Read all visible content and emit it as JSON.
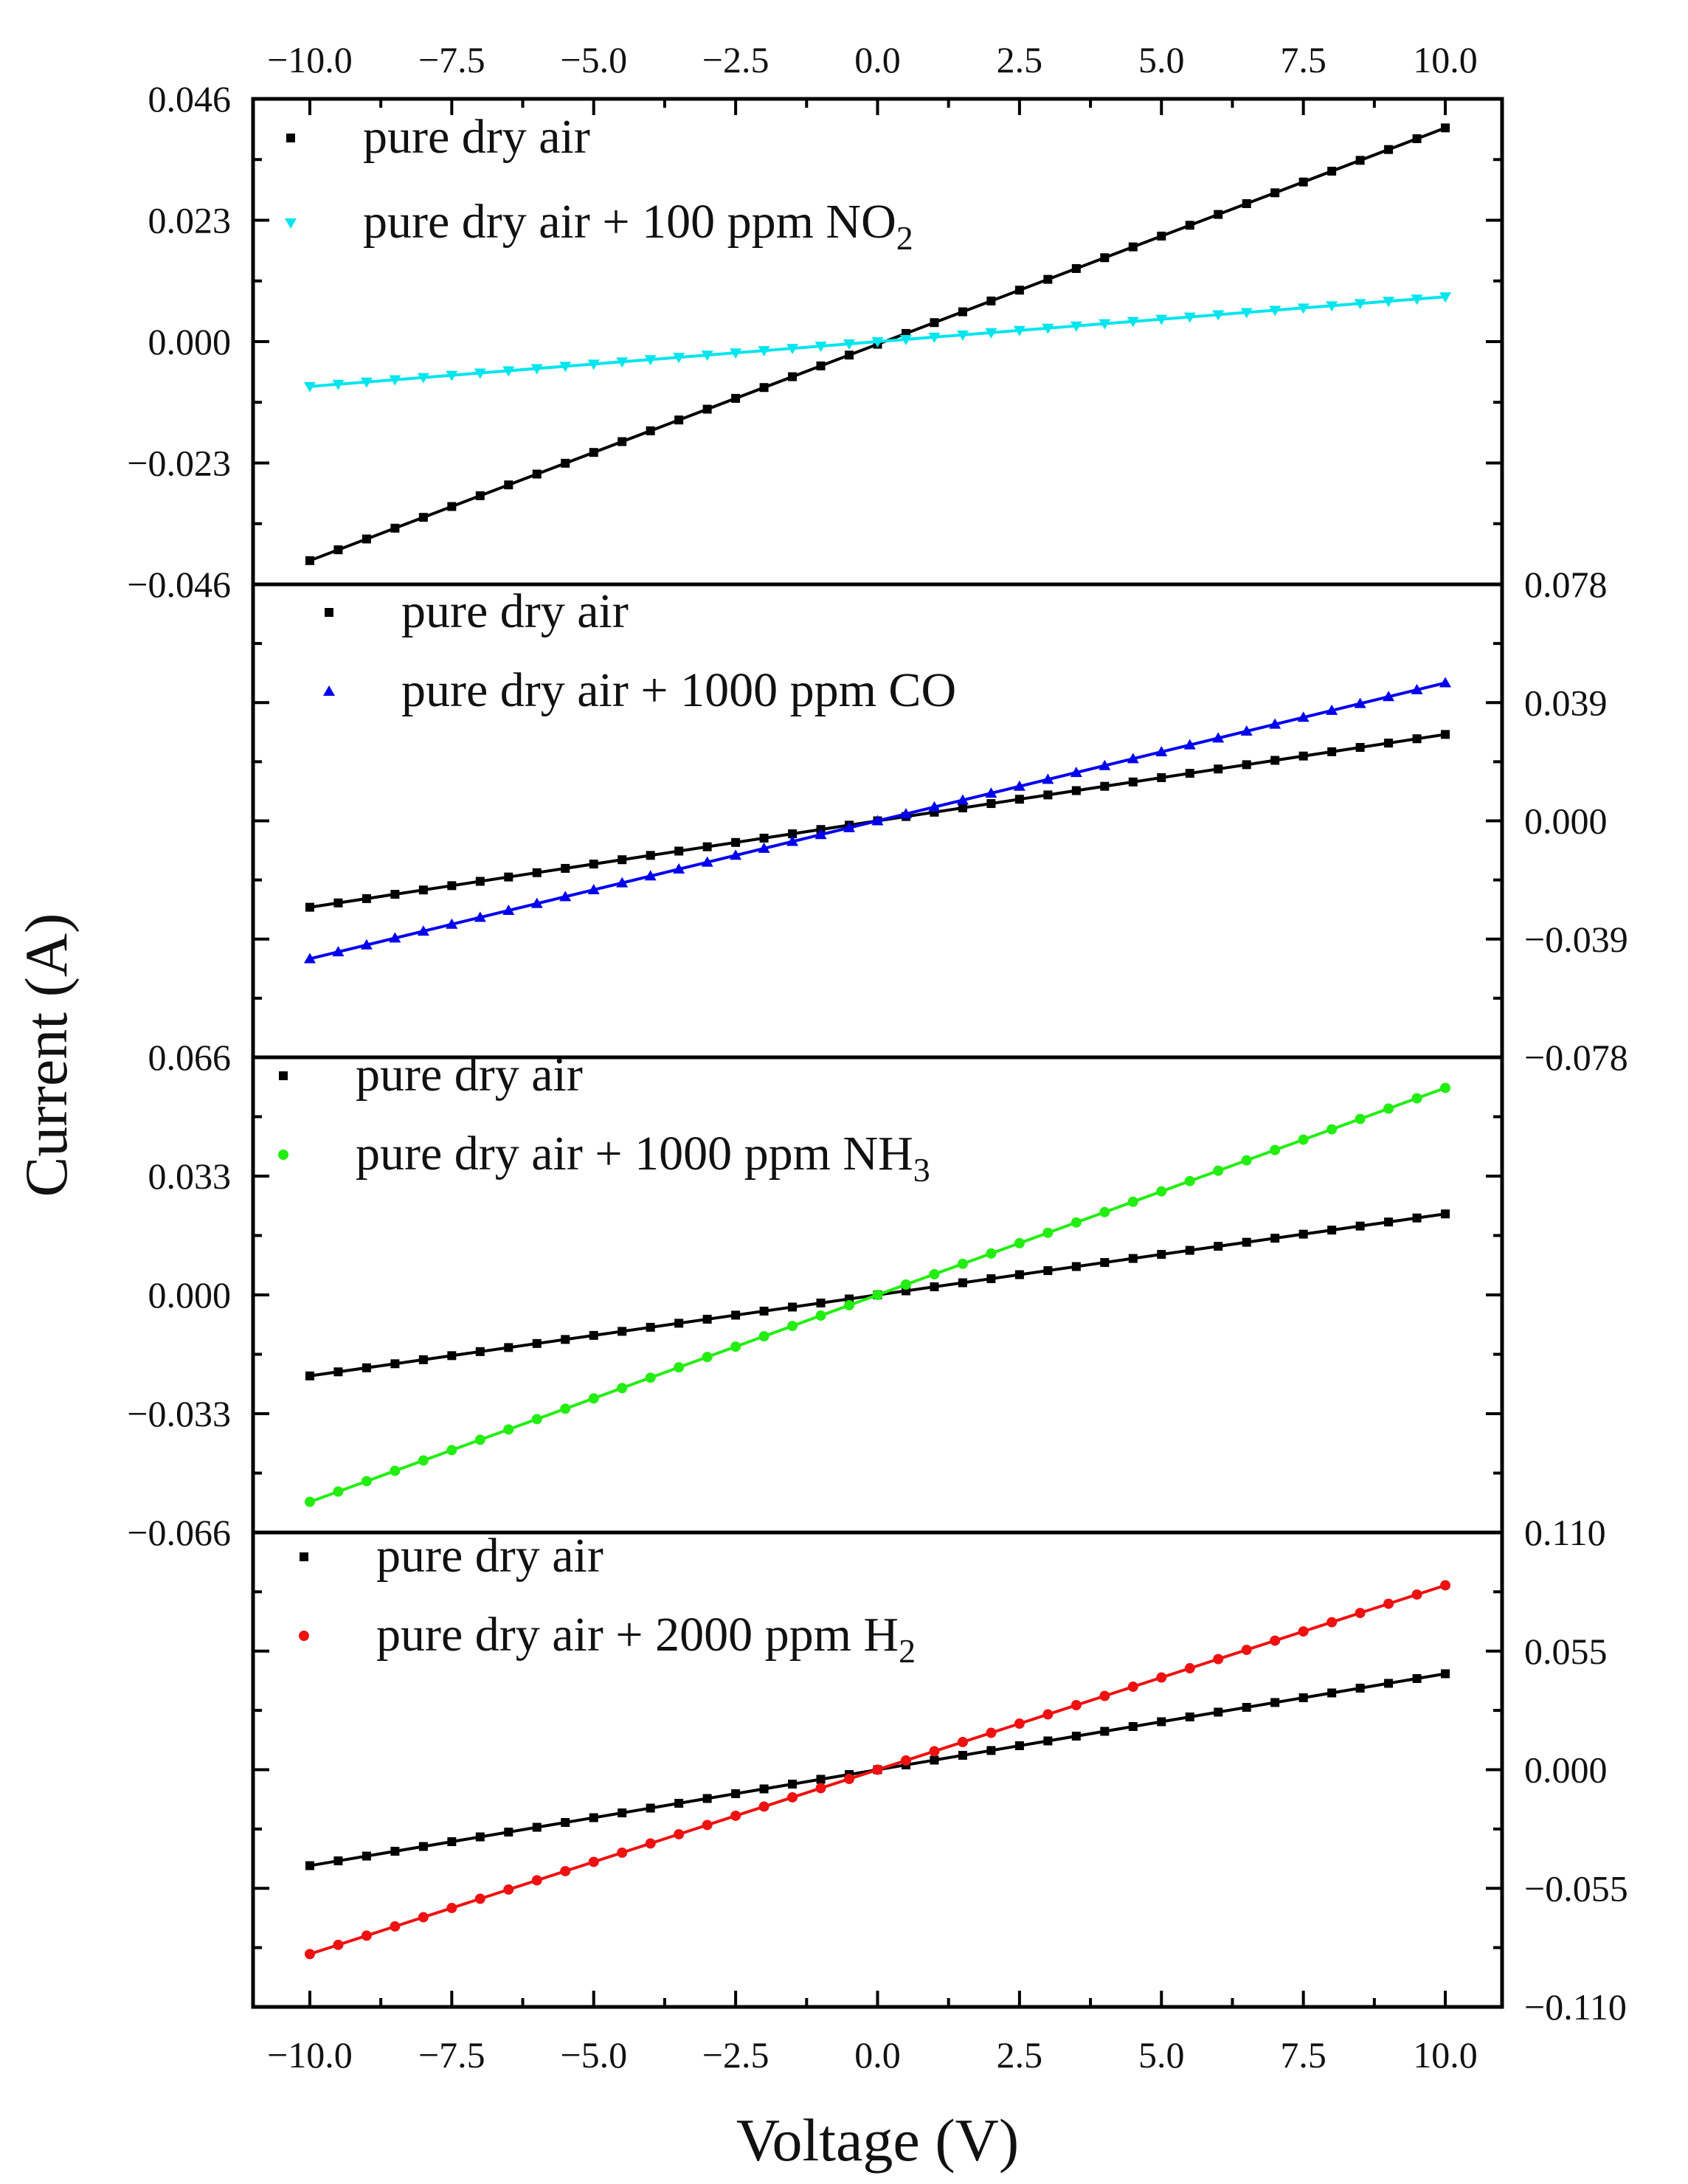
{
  "chart_data": [
    {
      "type": "line",
      "panel": 1,
      "y_axis_side": "left",
      "ylim": [
        -0.046,
        0.046
      ],
      "yticks": [
        "0.046",
        "0.023",
        "0.000",
        "−0.023",
        "−0.046"
      ],
      "xlim": [
        -11,
        11
      ],
      "xticks": [
        "−10.0",
        "−7.5",
        "−5.0",
        "−2.5",
        "0.0",
        "2.5",
        "5.0",
        "7.5",
        "10.0"
      ],
      "series": [
        {
          "name": "pure dry air",
          "legend_main": "pure dry air",
          "legend_sub": "",
          "legend_tail": "",
          "color": "#000000",
          "marker": "square",
          "x_range": [
            -10,
            10
          ],
          "points": 41,
          "y_at_min": -0.0415,
          "y_at_max": 0.0405
        },
        {
          "name": "pure dry air + 100 ppm NO2",
          "legend_main": "pure dry air + 100 ppm NO",
          "legend_sub": "2",
          "legend_tail": "",
          "color": "#00e5ee",
          "marker": "triangle-down",
          "x_range": [
            -10,
            10
          ],
          "points": 41,
          "y_at_min": -0.0085,
          "y_at_max": 0.0085
        }
      ]
    },
    {
      "type": "line",
      "panel": 2,
      "y_axis_side": "right",
      "ylim": [
        -0.078,
        0.078
      ],
      "yticks": [
        "0.078",
        "0.039",
        "0.000",
        "−0.039",
        "−0.078"
      ],
      "xlim": [
        -11,
        11
      ],
      "xticks": [],
      "series": [
        {
          "name": "pure dry air",
          "legend_main": "pure dry air",
          "legend_sub": "",
          "legend_tail": "",
          "color": "#000000",
          "marker": "square",
          "x_range": [
            -10,
            10
          ],
          "points": 41,
          "y_at_min": -0.0285,
          "y_at_max": 0.0285
        },
        {
          "name": "pure dry air + 1000 ppm CO",
          "legend_main": "pure dry air + 1000 ppm CO",
          "legend_sub": "",
          "legend_tail": "",
          "color": "#0000ee",
          "marker": "triangle-up",
          "x_range": [
            -10,
            10
          ],
          "points": 41,
          "y_at_min": -0.0455,
          "y_at_max": 0.0455
        }
      ]
    },
    {
      "type": "line",
      "panel": 3,
      "y_axis_side": "left",
      "ylim": [
        -0.066,
        0.066
      ],
      "yticks": [
        "0.066",
        "0.033",
        "0.000",
        "−0.033",
        "−0.066"
      ],
      "xlim": [
        -11,
        11
      ],
      "xticks": [],
      "series": [
        {
          "name": "pure dry air",
          "legend_main": "pure dry air",
          "legend_sub": "",
          "legend_tail": "",
          "color": "#000000",
          "marker": "square",
          "x_range": [
            -10,
            10
          ],
          "points": 41,
          "y_at_min": -0.0225,
          "y_at_max": 0.0225
        },
        {
          "name": "pure dry air + 1000 ppm NH3",
          "legend_main": "pure dry air + 1000 ppm NH",
          "legend_sub": "3",
          "legend_tail": "",
          "color": "#22ee11",
          "marker": "circle",
          "x_range": [
            -10,
            10
          ],
          "points": 41,
          "y_at_min": -0.0575,
          "y_at_max": 0.0575
        }
      ]
    },
    {
      "type": "line",
      "panel": 4,
      "y_axis_side": "right",
      "ylim": [
        -0.11,
        0.11
      ],
      "yticks": [
        "0.110",
        "0.055",
        "0.000",
        "−0.055",
        "−0.110"
      ],
      "xlim": [
        -11,
        11
      ],
      "xticks": [
        "−10.0",
        "−7.5",
        "−5.0",
        "−2.5",
        "0.0",
        "2.5",
        "5.0",
        "7.5",
        "10.0"
      ],
      "series": [
        {
          "name": "pure dry air",
          "legend_main": "pure dry air",
          "legend_sub": "",
          "legend_tail": "",
          "color": "#000000",
          "marker": "square",
          "x_range": [
            -10,
            10
          ],
          "points": 41,
          "y_at_min": -0.0445,
          "y_at_max": 0.0445
        },
        {
          "name": "pure dry air + 2000 ppm H2",
          "legend_main": "pure dry air + 2000 ppm H",
          "legend_sub": "2",
          "legend_tail": "",
          "color": "#ee1111",
          "marker": "circle",
          "x_range": [
            -10,
            10
          ],
          "points": 41,
          "y_at_min": -0.0855,
          "y_at_max": 0.0855
        }
      ]
    }
  ],
  "axes": {
    "xlabel": "Voltage (V)",
    "ylabel": "Current (A)"
  }
}
